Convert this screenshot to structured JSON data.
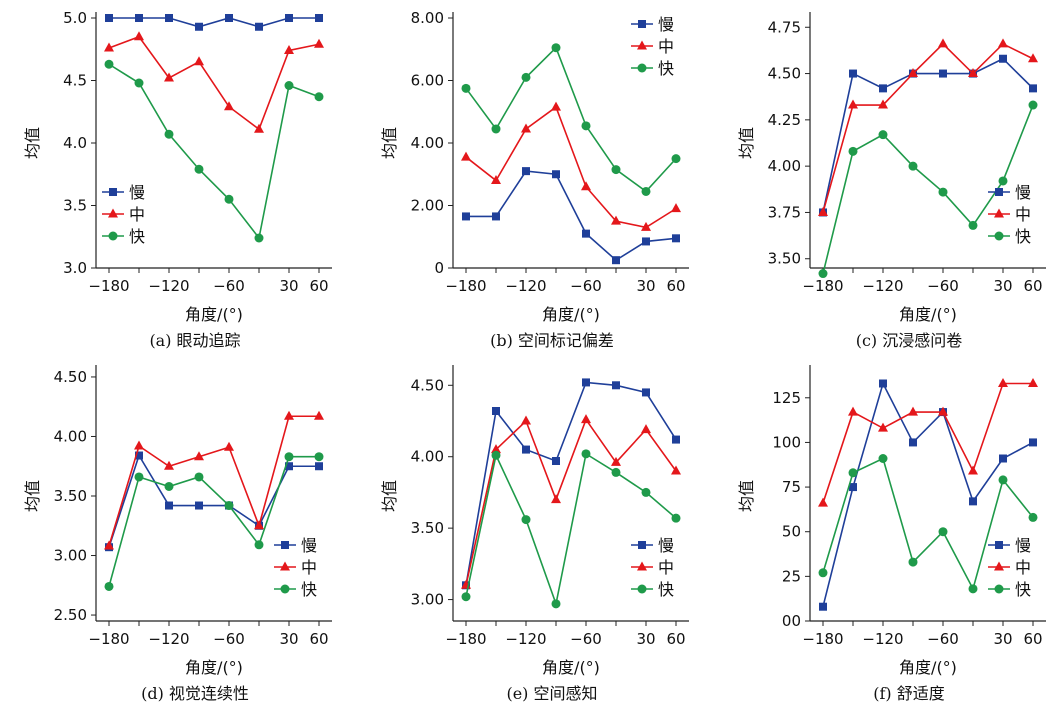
{
  "x_tick_labels": [
    "-180",
    "-120",
    "-60",
    "30",
    "60"
  ],
  "chart_data": [
    {
      "type": "line",
      "caption": "(a) 眼动追踪",
      "xlabel": "角度/(°)",
      "ylabel": "均值",
      "x": [
        -180,
        -150,
        -120,
        -90,
        -60,
        -30,
        30,
        60
      ],
      "ylim": [
        3.0,
        5.0
      ],
      "yticks": [
        3.0,
        3.5,
        4.0,
        4.5,
        5.0
      ],
      "ytick_labels": [
        "3.0",
        "3.5",
        "4.0",
        "4.5",
        "5.0"
      ],
      "legend": "bottom-left",
      "series": [
        {
          "name": "慢",
          "values": [
            5.0,
            5.0,
            5.0,
            4.93,
            5.0,
            4.93,
            5.0,
            5.0
          ],
          "color": "#1f3f99",
          "marker": "square"
        },
        {
          "name": "中",
          "values": [
            4.76,
            4.85,
            4.52,
            4.65,
            4.29,
            4.11,
            4.74,
            4.79
          ],
          "color": "#e4171b",
          "marker": "triangle"
        },
        {
          "name": "快",
          "values": [
            4.63,
            4.48,
            4.07,
            3.79,
            3.55,
            3.24,
            4.46,
            4.37
          ],
          "color": "#1f9a4a",
          "marker": "circle"
        }
      ]
    },
    {
      "type": "line",
      "caption": "(b) 空间标记偏差",
      "xlabel": "角度/(°)",
      "ylabel": "均值",
      "x": [
        -180,
        -150,
        -120,
        -90,
        -60,
        -30,
        30,
        60
      ],
      "ylim": [
        0,
        8.0
      ],
      "yticks": [
        0,
        2,
        4,
        6,
        8
      ],
      "ytick_labels": [
        "0",
        "2.00",
        "4.00",
        "6.00",
        "8.00"
      ],
      "legend": "top-right",
      "series": [
        {
          "name": "慢",
          "values": [
            1.65,
            1.65,
            3.1,
            3.0,
            1.1,
            0.25,
            0.85,
            0.95
          ],
          "color": "#1f3f99",
          "marker": "square"
        },
        {
          "name": "中",
          "values": [
            3.55,
            2.8,
            4.45,
            5.15,
            2.6,
            1.5,
            1.3,
            1.9
          ],
          "color": "#e4171b",
          "marker": "triangle"
        },
        {
          "name": "快",
          "values": [
            5.75,
            4.45,
            6.1,
            7.05,
            4.55,
            3.15,
            2.45,
            3.5
          ],
          "color": "#1f9a4a",
          "marker": "circle"
        }
      ]
    },
    {
      "type": "line",
      "caption": "(c) 沉浸感问卷",
      "xlabel": "角度/(°)",
      "ylabel": "均值",
      "x": [
        -180,
        -150,
        -120,
        -90,
        -60,
        -30,
        30,
        60
      ],
      "ylim": [
        3.45,
        4.8
      ],
      "yticks": [
        3.5,
        3.75,
        4.0,
        4.25,
        4.5,
        4.75
      ],
      "ytick_labels": [
        "3.50",
        "3.75",
        "4.00",
        "4.25",
        "4.50",
        "4.75"
      ],
      "legend": "bottom-right",
      "series": [
        {
          "name": "慢",
          "values": [
            3.75,
            4.5,
            4.42,
            4.5,
            4.5,
            4.5,
            4.58,
            4.42
          ],
          "color": "#1f3f99",
          "marker": "square"
        },
        {
          "name": "中",
          "values": [
            3.75,
            4.33,
            4.33,
            4.5,
            4.66,
            4.5,
            4.66,
            4.58
          ],
          "color": "#e4171b",
          "marker": "triangle"
        },
        {
          "name": "快",
          "values": [
            3.42,
            4.08,
            4.17,
            4.0,
            3.86,
            3.68,
            3.92,
            4.33
          ],
          "color": "#1f9a4a",
          "marker": "circle"
        }
      ]
    },
    {
      "type": "line",
      "caption": "(d) 视觉连续性",
      "xlabel": "角度/(°)",
      "ylabel": "均值",
      "x": [
        -180,
        -150,
        -120,
        -90,
        -60,
        -30,
        30,
        60
      ],
      "ylim": [
        2.45,
        4.55
      ],
      "yticks": [
        2.5,
        3.0,
        3.5,
        4.0,
        4.5
      ],
      "ytick_labels": [
        "2.50",
        "3.00",
        "3.50",
        "4.00",
        "4.50"
      ],
      "legend": "bottom-right",
      "series": [
        {
          "name": "慢",
          "values": [
            3.07,
            3.84,
            3.42,
            3.42,
            3.42,
            3.25,
            3.75,
            3.75
          ],
          "color": "#1f3f99",
          "marker": "square"
        },
        {
          "name": "中",
          "values": [
            3.08,
            3.92,
            3.75,
            3.83,
            3.91,
            3.25,
            4.17,
            4.17
          ],
          "color": "#e4171b",
          "marker": "triangle"
        },
        {
          "name": "快",
          "values": [
            2.74,
            3.66,
            3.58,
            3.66,
            3.42,
            3.09,
            3.83,
            3.83
          ],
          "color": "#1f9a4a",
          "marker": "circle"
        }
      ]
    },
    {
      "type": "line",
      "caption": "(e) 空间感知",
      "xlabel": "角度/(°)",
      "ylabel": "均值",
      "x": [
        -180,
        -150,
        -120,
        -90,
        -60,
        -30,
        30,
        60
      ],
      "ylim": [
        2.85,
        4.6
      ],
      "yticks": [
        3.0,
        3.5,
        4.0,
        4.5
      ],
      "ytick_labels": [
        "3.00",
        "3.50",
        "4.00",
        "4.50"
      ],
      "legend": "bottom-right",
      "series": [
        {
          "name": "慢",
          "values": [
            3.1,
            4.32,
            4.05,
            3.97,
            4.52,
            4.5,
            4.45,
            4.12
          ],
          "color": "#1f3f99",
          "marker": "square"
        },
        {
          "name": "中",
          "values": [
            3.1,
            4.05,
            4.25,
            3.7,
            4.26,
            3.96,
            4.19,
            3.9
          ],
          "color": "#e4171b",
          "marker": "triangle"
        },
        {
          "name": "快",
          "values": [
            3.02,
            4.01,
            3.56,
            2.97,
            4.02,
            3.89,
            3.75,
            3.57
          ],
          "color": "#1f9a4a",
          "marker": "circle"
        }
      ]
    },
    {
      "type": "line",
      "caption": "(f) 舒适度",
      "xlabel": "角度/(°)",
      "ylabel": "均值",
      "x": [
        -180,
        -150,
        -120,
        -90,
        -60,
        -30,
        30,
        60
      ],
      "ylim": [
        0,
        140
      ],
      "yticks": [
        0,
        25,
        50,
        75,
        100,
        125
      ],
      "ytick_labels": [
        "00",
        "25",
        "50",
        "75",
        "100",
        "125"
      ],
      "legend": "bottom-right",
      "series": [
        {
          "name": "慢",
          "values": [
            8,
            75,
            133,
            100,
            117,
            67,
            91,
            100
          ],
          "color": "#1f3f99",
          "marker": "square"
        },
        {
          "name": "中",
          "values": [
            66,
            117,
            108,
            117,
            117,
            84,
            133,
            133
          ],
          "color": "#e4171b",
          "marker": "triangle"
        },
        {
          "name": "快",
          "values": [
            27,
            83,
            91,
            33,
            50,
            18,
            79,
            58
          ],
          "color": "#1f9a4a",
          "marker": "circle"
        }
      ]
    }
  ]
}
